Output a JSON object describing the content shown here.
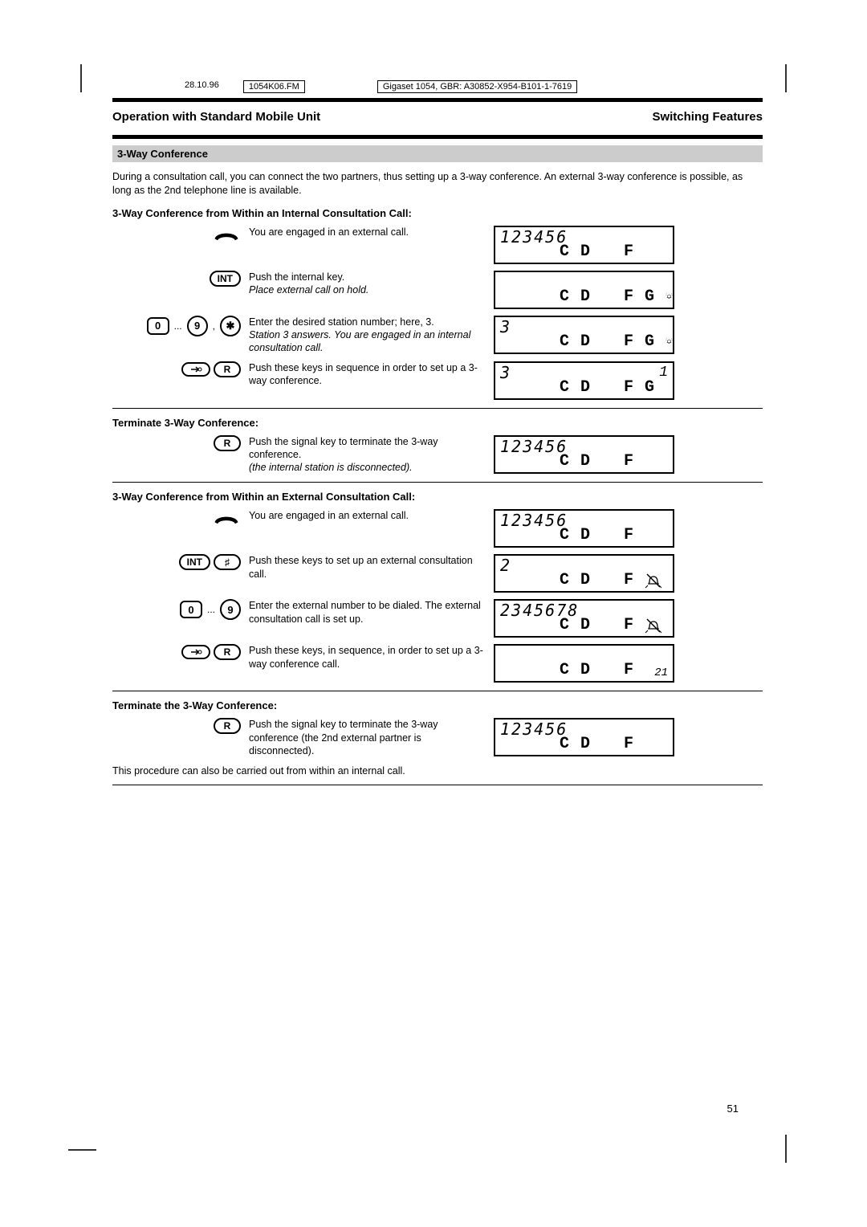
{
  "meta": {
    "date": "28.10.96",
    "file": "1054K06.FM",
    "docref": "Gigaset 1054, GBR: A30852-X954-B101-1-7619"
  },
  "titlebar": {
    "left": "Operation with Standard Mobile Unit",
    "right": "Switching Features"
  },
  "section": "3-Way Conference",
  "intro": "During a consultation call, you can connect the two partners, thus setting up a 3-way conference. An external 3-way conference is possible, as long as the 2nd telephone line is available.",
  "sub1": "3-Way Conference from Within an Internal Consultation Call:",
  "rows1": [
    {
      "text": "You are engaged in an external call.",
      "lcd_top": "123456",
      "annun": [
        "C",
        "D",
        "",
        "F"
      ],
      "icons": [
        "handset"
      ]
    },
    {
      "text": "Push the internal key.",
      "em": "Place external call on hold.",
      "lcd_top": "",
      "annun": [
        "C",
        "D",
        "",
        "F",
        "G"
      ],
      "bell": true,
      "icons": [
        "INT"
      ]
    },
    {
      "text": "Enter the desired station number; here, 3.",
      "em": "Station 3 answers. You are engaged in an internal consultation call.",
      "lcd_top": "3",
      "annun": [
        "C",
        "D",
        "",
        "F",
        "G"
      ],
      "bell": true,
      "icons": [
        "0",
        "dots",
        "9",
        ",",
        "star"
      ]
    },
    {
      "text": "Push these keys in sequence in order to set up a 3-way conference.",
      "lcd_top": "3",
      "lcd_right": "1",
      "annun": [
        "C",
        "D",
        "",
        "F",
        "G"
      ],
      "icons": [
        "arrow",
        "R"
      ]
    }
  ],
  "term1_head": "Terminate 3-Way Conference:",
  "term1_row": {
    "text": "Push the signal key to terminate the 3-way conference.",
    "em": "(the internal station is disconnected).",
    "lcd_top": "123456",
    "annun": [
      "C",
      "D",
      "",
      "F"
    ],
    "icons": [
      "R"
    ]
  },
  "sub2": "3-Way Conference from Within an External Consultation Call:",
  "rows2": [
    {
      "text": "You are engaged in an external call.",
      "lcd_top": "123456",
      "annun": [
        "C",
        "D",
        "",
        "F"
      ],
      "icons": [
        "handset"
      ]
    },
    {
      "text": "Push these keys to set up an external consultation call.",
      "lcd_top": "2",
      "annun": [
        "C",
        "D",
        "",
        "F"
      ],
      "bell": true,
      "nobell_strike": true,
      "icons": [
        "INT",
        "hash"
      ]
    },
    {
      "text": "Enter the external number to be dialed. The external consultation call is set up.",
      "lcd_top": "2345678",
      "annun": [
        "C",
        "D",
        "",
        "F"
      ],
      "bell": true,
      "nobell_strike": true,
      "icons": [
        "0",
        "dots",
        "9"
      ]
    },
    {
      "text": "Push these keys, in sequence, in order to set up a 3-way conference call.",
      "lcd_top": "",
      "lcd_right_bot": "21",
      "annun": [
        "C",
        "D",
        "",
        "F"
      ],
      "icons": [
        "arrow",
        "R"
      ]
    }
  ],
  "term2_head": "Terminate the 3-Way Conference:",
  "term2_row": {
    "text": "Push the signal key to terminate the 3-way conference (the 2nd external partner is disconnected).",
    "lcd_top": "123456",
    "annun": [
      "C",
      "D",
      "",
      "F"
    ],
    "icons": [
      "R"
    ]
  },
  "footnote": "This procedure can also be carried out from within an internal call.",
  "pagenum": "51",
  "keylabels": {
    "INT": "INT",
    "R": "R",
    "0": "0",
    "9": "9",
    "star": "✱",
    "hash": "♯"
  },
  "colors": {
    "band_bg": "#cccccc",
    "border": "#000000"
  }
}
